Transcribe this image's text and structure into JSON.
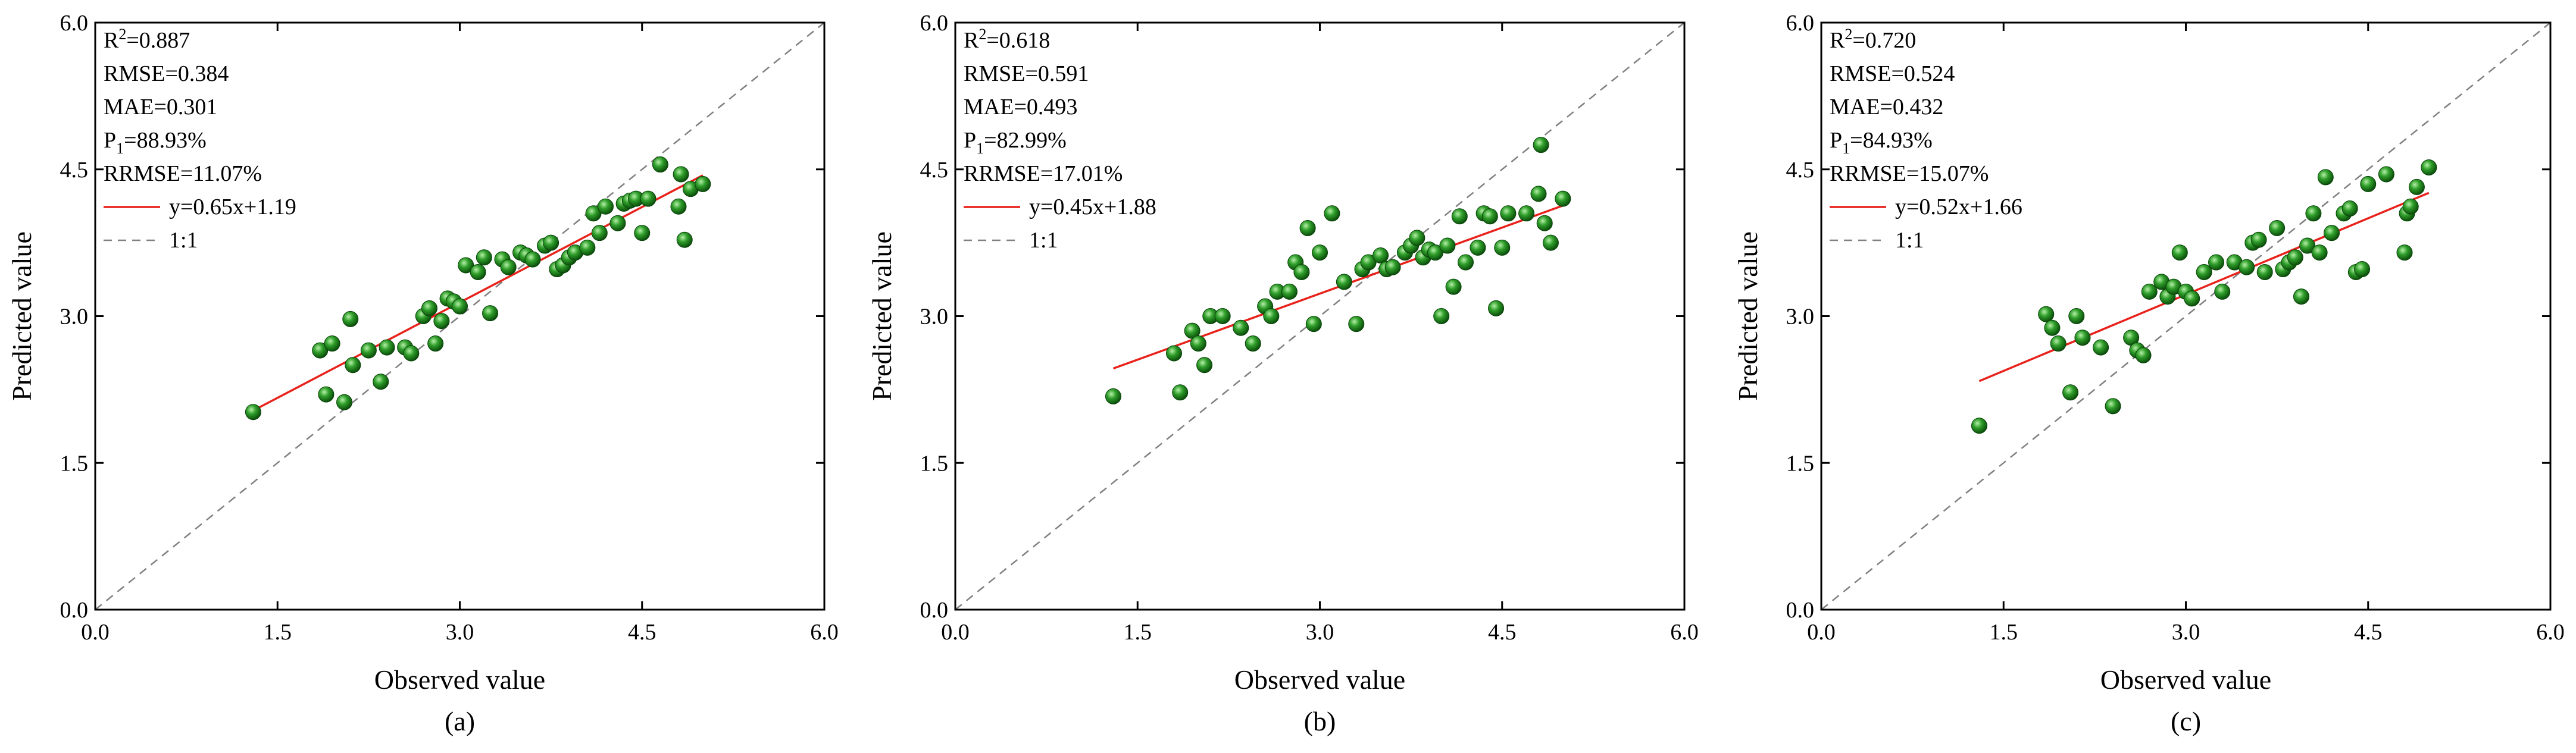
{
  "chart_data": [
    {
      "type": "scatter",
      "panel_label": "(a)",
      "xlabel": "Observed value",
      "ylabel": "Predicted value",
      "xlim": [
        0.0,
        6.0
      ],
      "ylim": [
        0.0,
        6.0
      ],
      "xticks": [
        "0.0",
        "1.5",
        "3.0",
        "4.5",
        "6.0"
      ],
      "yticks": [
        "0.0",
        "1.5",
        "3.0",
        "4.5",
        "6.0"
      ],
      "stats": {
        "r2_prefix": "R",
        "r2_sup": "2",
        "r2_value": "=0.887",
        "rmse": "RMSE=0.384",
        "mae": "MAE=0.301",
        "p1_prefix": "P",
        "p1_sub": "1",
        "p1_value": "=88.93%",
        "rrmse": "RRMSE=11.07%"
      },
      "legend": {
        "fit_label": "y=0.65x+1.19",
        "diag_label": "1:1"
      },
      "fit": {
        "slope": 0.65,
        "intercept": 1.19,
        "x_range": [
          1.3,
          5.0
        ]
      },
      "colors": {
        "points": "#1f8a1f",
        "fit": "#e8221b",
        "diag": "#808080"
      },
      "x": [
        1.3,
        1.85,
        1.9,
        1.95,
        2.05,
        2.1,
        2.12,
        2.25,
        2.35,
        2.4,
        2.55,
        2.6,
        2.7,
        2.75,
        2.8,
        2.85,
        2.9,
        2.95,
        3.0,
        3.05,
        3.15,
        3.2,
        3.25,
        3.35,
        3.4,
        3.5,
        3.55,
        3.6,
        3.7,
        3.75,
        3.8,
        3.85,
        3.9,
        3.95,
        4.05,
        4.1,
        4.15,
        4.2,
        4.3,
        4.35,
        4.4,
        4.45,
        4.5,
        4.55,
        4.65,
        4.8,
        4.82,
        4.85,
        4.9,
        5.0
      ],
      "y": [
        2.02,
        2.65,
        2.2,
        2.72,
        2.12,
        2.97,
        2.5,
        2.65,
        2.33,
        2.68,
        2.68,
        2.62,
        3.0,
        3.08,
        2.72,
        2.95,
        3.18,
        3.15,
        3.1,
        3.52,
        3.45,
        3.6,
        3.03,
        3.58,
        3.5,
        3.65,
        3.62,
        3.58,
        3.72,
        3.75,
        3.48,
        3.52,
        3.6,
        3.65,
        3.7,
        4.05,
        3.85,
        4.12,
        3.95,
        4.15,
        4.18,
        4.2,
        3.85,
        4.2,
        4.55,
        4.12,
        4.45,
        3.78,
        4.3,
        4.35
      ]
    },
    {
      "type": "scatter",
      "panel_label": "(b)",
      "xlabel": "Observed value",
      "ylabel": "Predicted value",
      "xlim": [
        0.0,
        6.0
      ],
      "ylim": [
        0.0,
        6.0
      ],
      "xticks": [
        "0.0",
        "1.5",
        "3.0",
        "4.5",
        "6.0"
      ],
      "yticks": [
        "0.0",
        "1.5",
        "3.0",
        "4.5",
        "6.0"
      ],
      "stats": {
        "r2_prefix": "R",
        "r2_sup": "2",
        "r2_value": "=0.618",
        "rmse": "RMSE=0.591",
        "mae": "MAE=0.493",
        "p1_prefix": "P",
        "p1_sub": "1",
        "p1_value": "=82.99%",
        "rrmse": "RRMSE=17.01%"
      },
      "legend": {
        "fit_label": "y=0.45x+1.88",
        "diag_label": "1:1"
      },
      "fit": {
        "slope": 0.45,
        "intercept": 1.88,
        "x_range": [
          1.3,
          5.0
        ]
      },
      "colors": {
        "points": "#1f8a1f",
        "fit": "#e8221b",
        "diag": "#808080"
      },
      "x": [
        1.3,
        1.8,
        1.85,
        1.95,
        2.0,
        2.05,
        2.1,
        2.2,
        2.35,
        2.45,
        2.55,
        2.6,
        2.65,
        2.75,
        2.8,
        2.85,
        2.9,
        2.95,
        3.0,
        3.1,
        3.2,
        3.3,
        3.35,
        3.4,
        3.5,
        3.55,
        3.6,
        3.7,
        3.75,
        3.8,
        3.85,
        3.9,
        3.95,
        4.0,
        4.05,
        4.1,
        4.15,
        4.2,
        4.3,
        4.35,
        4.4,
        4.45,
        4.5,
        4.55,
        4.7,
        4.8,
        4.82,
        4.85,
        4.9,
        5.0
      ],
      "y": [
        2.18,
        2.62,
        2.22,
        2.85,
        2.72,
        2.5,
        3.0,
        3.0,
        2.88,
        2.72,
        3.1,
        3.0,
        3.25,
        3.25,
        3.55,
        3.45,
        3.9,
        2.92,
        3.65,
        4.05,
        3.35,
        2.92,
        3.48,
        3.55,
        3.62,
        3.48,
        3.5,
        3.65,
        3.72,
        3.8,
        3.6,
        3.68,
        3.65,
        3.0,
        3.72,
        3.3,
        4.02,
        3.55,
        3.7,
        4.05,
        4.02,
        3.08,
        3.7,
        4.05,
        4.05,
        4.25,
        4.75,
        3.95,
        3.75,
        4.2
      ]
    },
    {
      "type": "scatter",
      "panel_label": "(c)",
      "xlabel": "Observed value",
      "ylabel": "Predicted value",
      "xlim": [
        0.0,
        6.0
      ],
      "ylim": [
        0.0,
        6.0
      ],
      "xticks": [
        "0.0",
        "1.5",
        "3.0",
        "4.5",
        "6.0"
      ],
      "yticks": [
        "0.0",
        "1.5",
        "3.0",
        "4.5",
        "6.0"
      ],
      "stats": {
        "r2_prefix": "R",
        "r2_sup": "2",
        "r2_value": "=0.720",
        "rmse": "RMSE=0.524",
        "mae": "MAE=0.432",
        "p1_prefix": "P",
        "p1_sub": "1",
        "p1_value": "=84.93%",
        "rrmse": "RRMSE=15.07%"
      },
      "legend": {
        "fit_label": "y=0.52x+1.66",
        "diag_label": "1:1"
      },
      "fit": {
        "slope": 0.52,
        "intercept": 1.66,
        "x_range": [
          1.3,
          5.0
        ]
      },
      "colors": {
        "points": "#1f8a1f",
        "fit": "#e8221b",
        "diag": "#808080"
      },
      "x": [
        1.3,
        1.85,
        1.9,
        1.95,
        2.05,
        2.1,
        2.15,
        2.3,
        2.4,
        2.55,
        2.6,
        2.65,
        2.7,
        2.8,
        2.85,
        2.9,
        2.95,
        3.0,
        3.05,
        3.15,
        3.25,
        3.3,
        3.4,
        3.5,
        3.55,
        3.6,
        3.65,
        3.75,
        3.8,
        3.85,
        3.9,
        3.95,
        4.0,
        4.05,
        4.1,
        4.15,
        4.2,
        4.3,
        4.35,
        4.4,
        4.45,
        4.5,
        4.65,
        4.8,
        4.82,
        4.85,
        4.9,
        5.0
      ],
      "y": [
        1.88,
        3.02,
        2.88,
        2.72,
        2.22,
        3.0,
        2.78,
        2.68,
        2.08,
        2.78,
        2.65,
        2.6,
        3.25,
        3.35,
        3.2,
        3.3,
        3.65,
        3.25,
        3.18,
        3.45,
        3.55,
        3.25,
        3.55,
        3.5,
        3.75,
        3.78,
        3.45,
        3.9,
        3.48,
        3.55,
        3.6,
        3.2,
        3.72,
        4.05,
        3.65,
        4.42,
        3.85,
        4.05,
        4.1,
        3.45,
        3.48,
        4.35,
        4.45,
        3.65,
        4.05,
        4.12,
        4.32,
        4.52
      ]
    }
  ]
}
